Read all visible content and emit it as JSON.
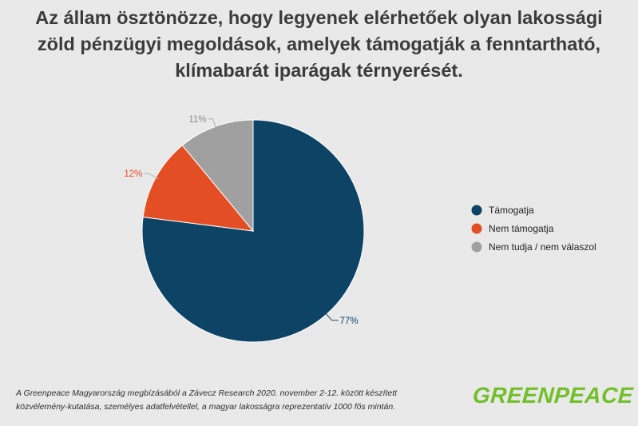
{
  "chart_data": {
    "type": "pie",
    "title": "Az állam ösztönözze, hogy legyenek elérhetőek olyan lakossági zöld pénzügyi megoldások, amelyek támogatják a fenntartható, klímabarát iparágak térnyerését.",
    "categories": [
      "Támogatja",
      "Nem támogatja",
      "Nem tudja / nem válaszol"
    ],
    "values": [
      77,
      12,
      11
    ],
    "data_labels": [
      "77%",
      "12%",
      "11%"
    ],
    "colors": [
      "#0d4466",
      "#e44e25",
      "#a0a0a0"
    ],
    "legend_position": "right"
  },
  "footnote": {
    "line1": "A Greenpeace Magyarország megbízásából a Závecz Research 2020. november 2-12. között készített",
    "line2": "közvélemény-kutatása, személyes adatfelvétellel, a magyar lakosságra reprezentatív 1000 fős mintán."
  },
  "logo": {
    "text": "GREENPEACE",
    "color": "#72bf2a"
  }
}
